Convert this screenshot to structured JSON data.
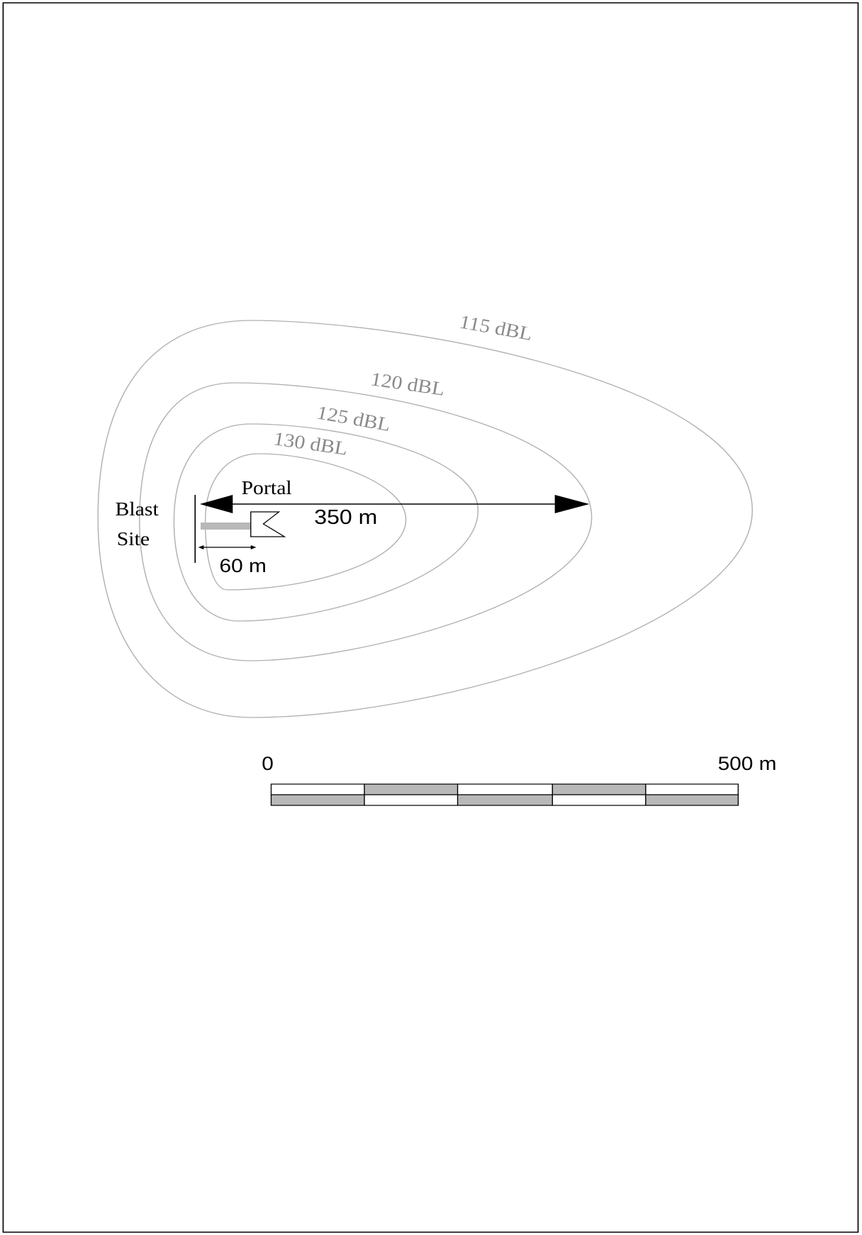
{
  "contours": [
    {
      "label": "115 dBL"
    },
    {
      "label": "120 dBL"
    },
    {
      "label": "125 dBL"
    },
    {
      "label": "130 dBL"
    }
  ],
  "portal_label": "Portal",
  "blast_site": [
    "Blast",
    "Site"
  ],
  "distance_label": "350 m",
  "tunnel_label": "60 m",
  "scale_bar": {
    "start": "0",
    "end": "500 m"
  }
}
